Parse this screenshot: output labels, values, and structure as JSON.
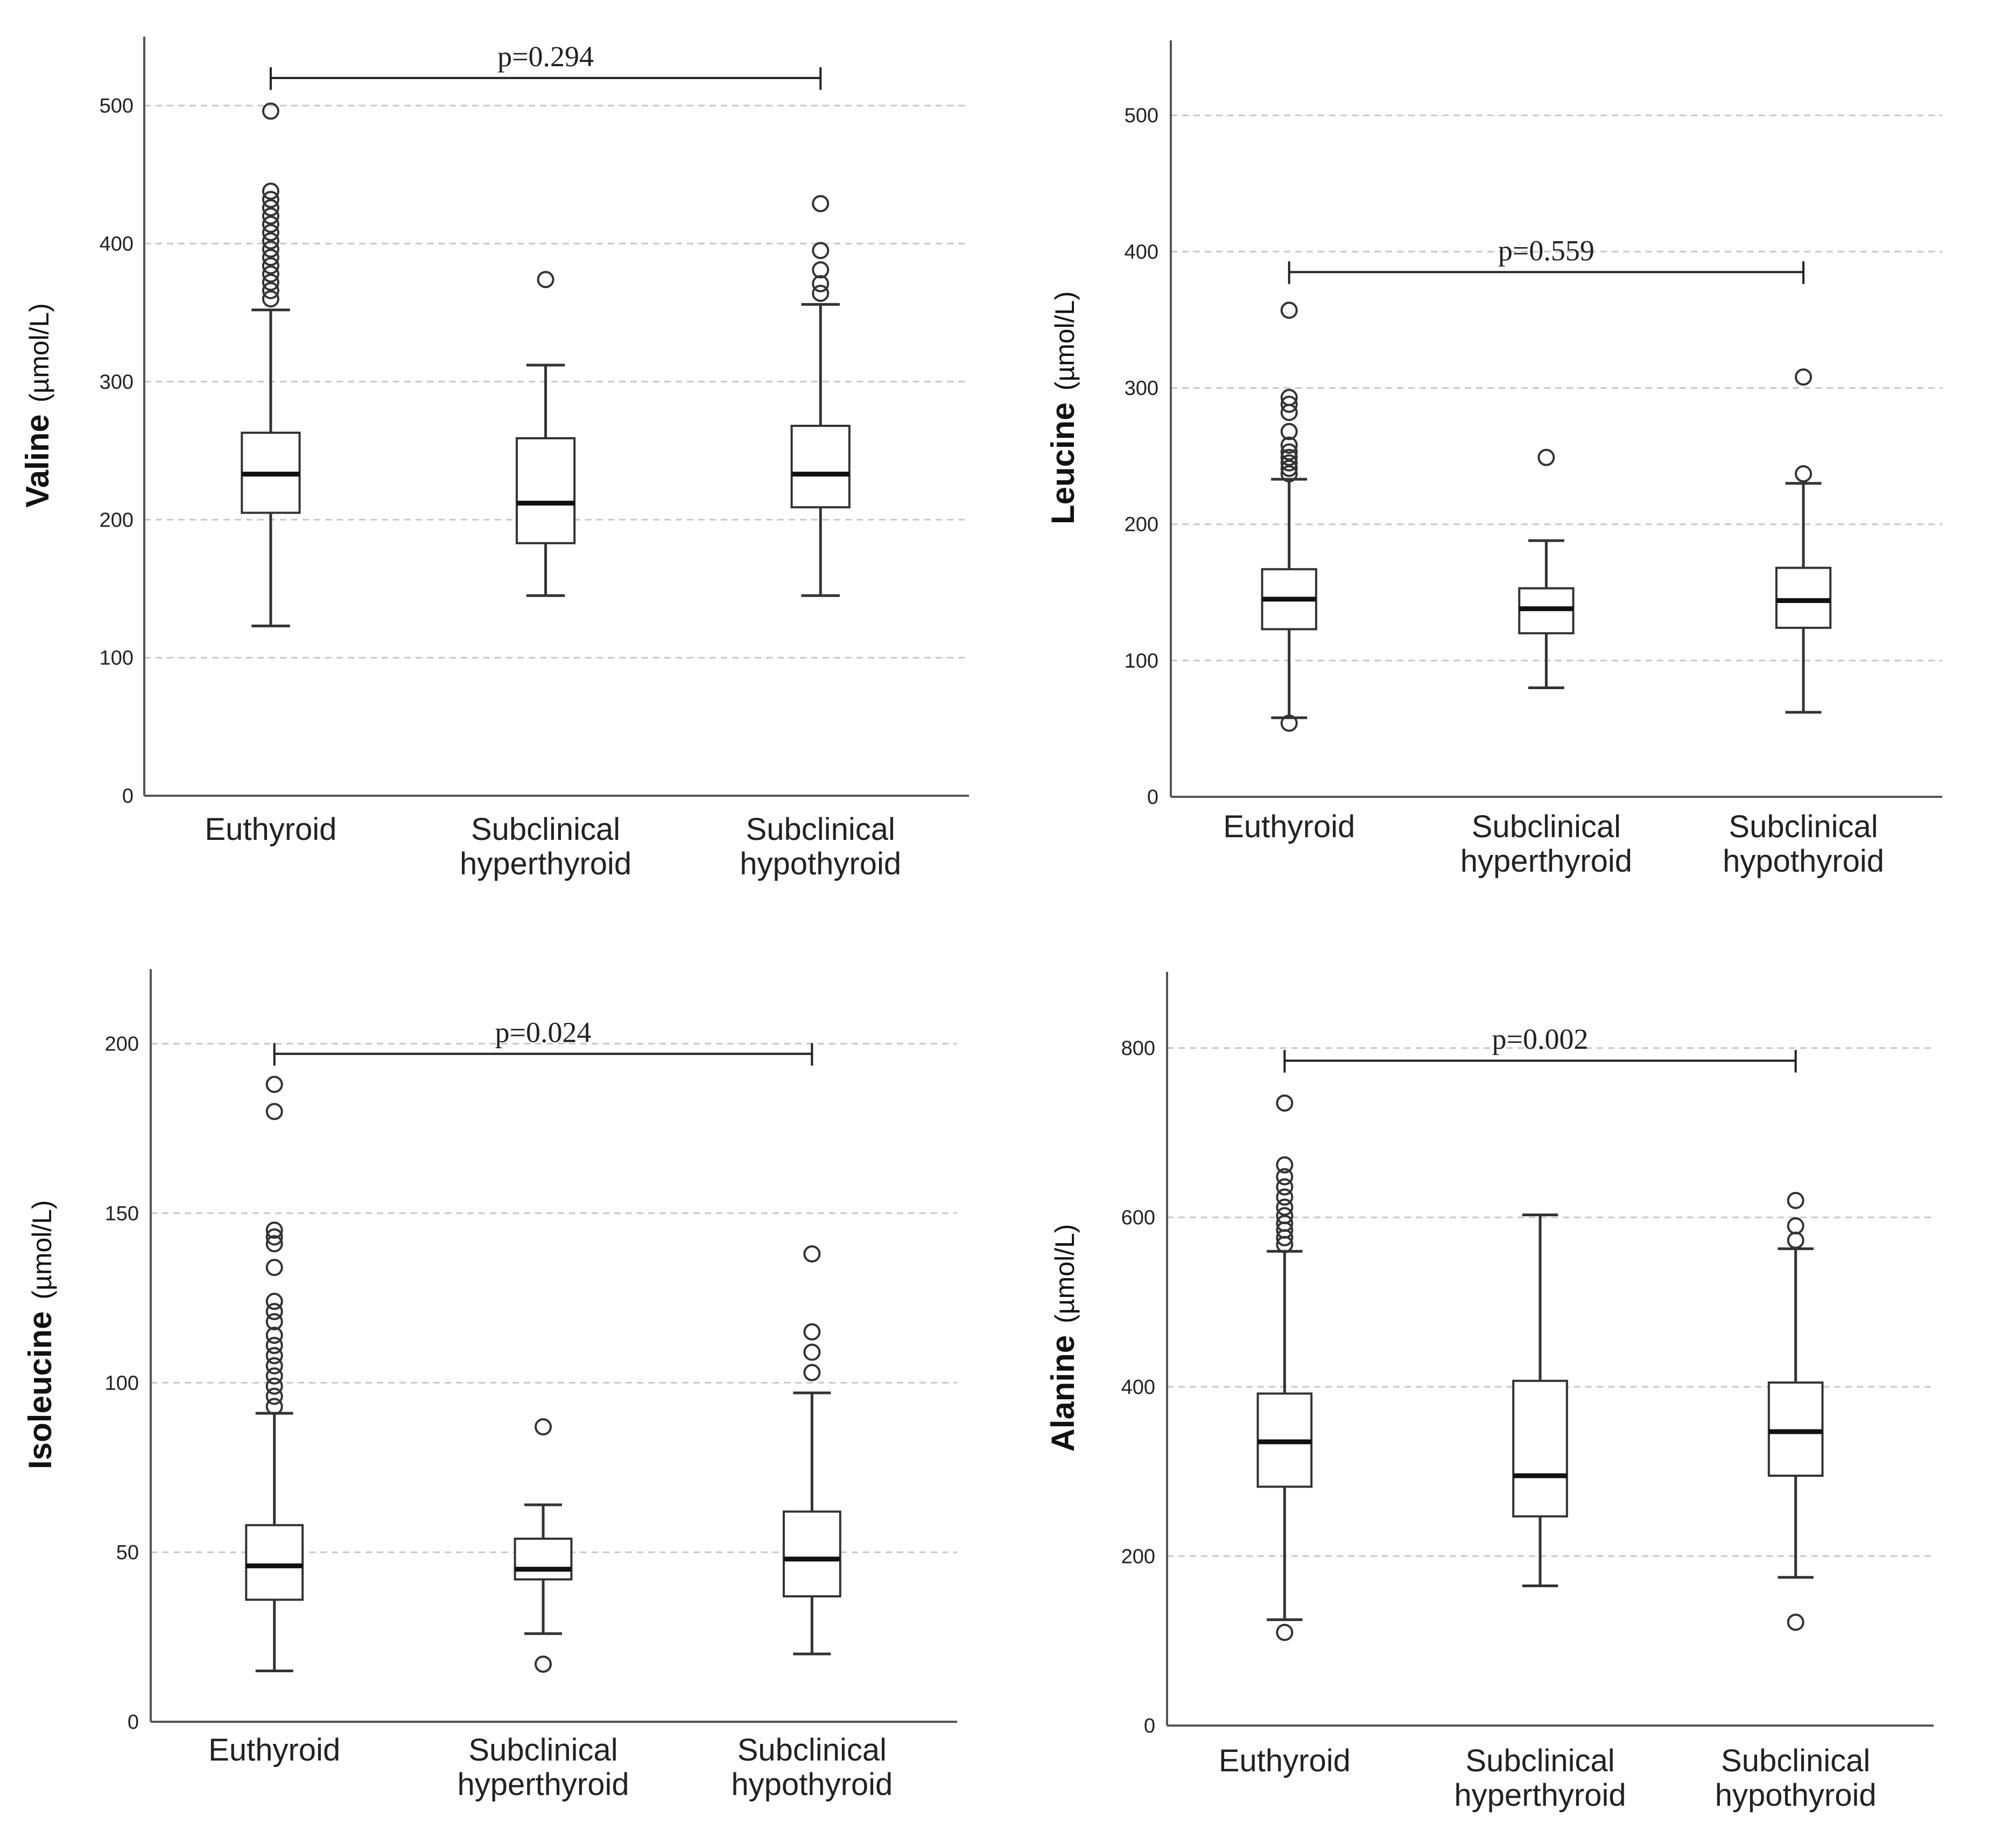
{
  "chart_data": [
    {
      "type": "box",
      "ylabel": "Valine",
      "yunit": "(µmol/L)",
      "ylim": [
        0,
        550
      ],
      "yticks": [
        0,
        100,
        200,
        300,
        400,
        500
      ],
      "grid": true,
      "categories": [
        [
          "Euthyroid"
        ],
        [
          "Subclinical",
          "hyperthyroid"
        ],
        [
          "Subclinical",
          "hypothyroid"
        ]
      ],
      "boxes": [
        {
          "whisker_low": 123,
          "q1": 205,
          "median": 233,
          "q3": 263,
          "whisker_high": 352,
          "outliers": [
            360,
            366,
            372,
            378,
            384,
            390,
            396,
            402,
            408,
            414,
            420,
            426,
            432,
            438,
            496
          ]
        },
        {
          "whisker_low": 145,
          "q1": 183,
          "median": 212,
          "q3": 259,
          "whisker_high": 312,
          "outliers": [
            374
          ]
        },
        {
          "whisker_low": 145,
          "q1": 209,
          "median": 233,
          "q3": 268,
          "whisker_high": 356,
          "outliers": [
            364,
            371,
            381,
            395,
            429
          ]
        }
      ],
      "comparison": {
        "from": 0,
        "to": 2,
        "y": 520,
        "label": "p=0.294"
      }
    },
    {
      "type": "box",
      "ylabel": "Leucine",
      "yunit": "(µmol/L)",
      "ylim": [
        0,
        555
      ],
      "yticks": [
        0,
        100,
        200,
        300,
        400,
        500
      ],
      "grid": true,
      "categories": [
        [
          "Euthyroid"
        ],
        [
          "Subclinical",
          "hyperthyroid"
        ],
        [
          "Subclinical",
          "hypothyroid"
        ]
      ],
      "boxes": [
        {
          "whisker_low": 58,
          "q1": 123,
          "median": 145,
          "q3": 167,
          "whisker_high": 233,
          "outliers": [
            54,
            237,
            241,
            245,
            249,
            253,
            258,
            268,
            282,
            288,
            293,
            357
          ]
        },
        {
          "whisker_low": 80,
          "q1": 120,
          "median": 138,
          "q3": 153,
          "whisker_high": 188,
          "outliers": [
            249
          ]
        },
        {
          "whisker_low": 62,
          "q1": 124,
          "median": 144,
          "q3": 168,
          "whisker_high": 230,
          "outliers": [
            237,
            308
          ]
        }
      ],
      "comparison": {
        "from": 0,
        "to": 2,
        "y": 385,
        "label": "p=0.559"
      }
    },
    {
      "type": "box",
      "ylabel": "Isoleucine",
      "yunit": "(µmol/L)",
      "ylim": [
        0,
        222
      ],
      "yticks": [
        0,
        50,
        100,
        150,
        200
      ],
      "grid": true,
      "categories": [
        [
          "Euthyroid"
        ],
        [
          "Subclinical",
          "hyperthyroid"
        ],
        [
          "Subclinical",
          "hypothyroid"
        ]
      ],
      "boxes": [
        {
          "whisker_low": 15,
          "q1": 36,
          "median": 46,
          "q3": 58,
          "whisker_high": 91,
          "outliers": [
            93,
            96,
            99,
            102,
            105,
            108,
            111,
            114,
            118,
            121,
            124,
            134,
            141,
            143,
            145,
            180,
            188
          ]
        },
        {
          "whisker_low": 26,
          "q1": 42,
          "median": 45,
          "q3": 54,
          "whisker_high": 64,
          "outliers": [
            17,
            87
          ]
        },
        {
          "whisker_low": 20,
          "q1": 37,
          "median": 48,
          "q3": 62,
          "whisker_high": 97,
          "outliers": [
            103,
            109,
            115,
            138
          ]
        }
      ],
      "comparison": {
        "from": 0,
        "to": 2,
        "y": 197,
        "label": "p=0.024"
      }
    },
    {
      "type": "box",
      "ylabel": "Alanine",
      "yunit": "(µmol/L)",
      "ylim": [
        0,
        890
      ],
      "yticks": [
        0,
        200,
        400,
        600,
        800
      ],
      "grid": true,
      "categories": [
        [
          "Euthyroid"
        ],
        [
          "Subclinical",
          "hyperthyroid"
        ],
        [
          "Subclinical",
          "hypothyroid"
        ]
      ],
      "boxes": [
        {
          "whisker_low": 125,
          "q1": 282,
          "median": 335,
          "q3": 392,
          "whisker_high": 560,
          "outliers": [
            110,
            568,
            576,
            585,
            593,
            602,
            612,
            624,
            636,
            648,
            662,
            735
          ]
        },
        {
          "whisker_low": 165,
          "q1": 247,
          "median": 295,
          "q3": 407,
          "whisker_high": 603,
          "outliers": []
        },
        {
          "whisker_low": 175,
          "q1": 295,
          "median": 347,
          "q3": 405,
          "whisker_high": 563,
          "outliers": [
            122,
            573,
            590,
            620
          ]
        }
      ],
      "comparison": {
        "from": 0,
        "to": 2,
        "y": 785,
        "label": "p=0.002"
      }
    }
  ]
}
